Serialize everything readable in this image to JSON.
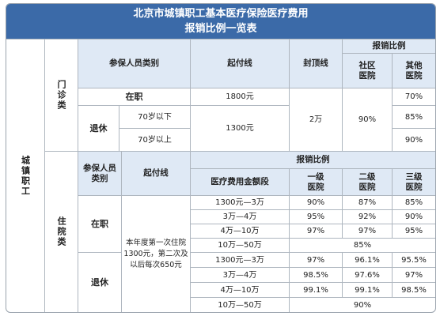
{
  "title_line1": "北京市城镇职工基本医疗保险医疗费用",
  "title_line2": "报销比例一览表",
  "side_label": "城镇职工",
  "outpatient": {
    "section_label": "门诊类",
    "h_category": "参保人员类别",
    "h_deductible": "起付线",
    "h_cap": "封顶线",
    "h_ratio": "报销比例",
    "h_community": "社区\n医院",
    "h_other": "其他\n医院",
    "employed": "在职",
    "employed_deductible": "1800元",
    "retired": "退休",
    "age_under70": "70岁以下",
    "age_over70": "70岁以上",
    "retired_deductible": "1300元",
    "cap_value": "2万",
    "community_ratio": "90%",
    "other_employed": "70%",
    "other_under70": "85%",
    "other_over70": "90%"
  },
  "inpatient": {
    "section_label": "住院类",
    "h_category": "参保人员\n类别",
    "h_deductible": "起付线",
    "h_ratio": "报销比例",
    "h_amount": "医疗费用金额段",
    "h_level1": "一级\n医院",
    "h_level2": "二级\n医院",
    "h_level3": "三级\n医院",
    "employed": "在职",
    "retired": "退休",
    "deductible_note": "本年度第一次住院\n1300元，第二次及\n以后每次650元",
    "employed_rows": [
      {
        "range": "1300元—3万",
        "l1": "90%",
        "l2": "87%",
        "l3": "85%"
      },
      {
        "range": "3万—4万",
        "l1": "95%",
        "l2": "92%",
        "l3": "90%"
      },
      {
        "range": "4万—10万",
        "l1": "97%",
        "l2": "97%",
        "l3": "95%"
      }
    ],
    "employed_high": {
      "range": "10万—50万",
      "ratio": "85%"
    },
    "retired_rows": [
      {
        "range": "1300元—3万",
        "l1": "97%",
        "l2": "96.1%",
        "l3": "95.5%"
      },
      {
        "range": "3万—4万",
        "l1": "98.5%",
        "l2": "97.6%",
        "l3": "97%"
      },
      {
        "range": "4万—10万",
        "l1": "99.1%",
        "l2": "99.1%",
        "l3": "98.5%"
      }
    ],
    "retired_high": {
      "range": "10万—50万",
      "ratio": "90%"
    }
  }
}
